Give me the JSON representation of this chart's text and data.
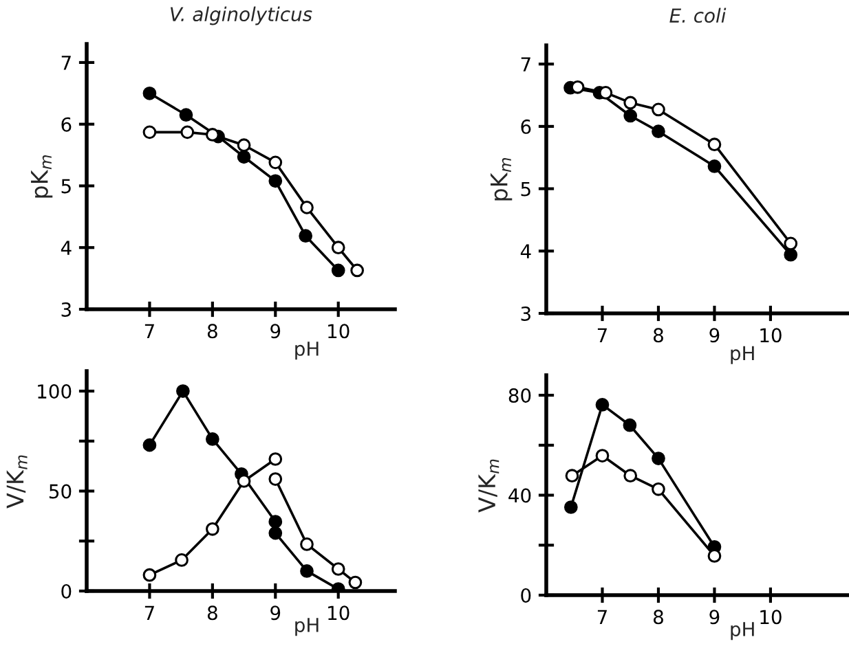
{
  "chart_data": [
    {
      "type": "line",
      "title": "V. alginolyticus",
      "xlabel": "pH",
      "ylabel": "pK$_{m}$",
      "xlim": [
        6,
        10.9
      ],
      "xticks": [
        7,
        8,
        9,
        10
      ],
      "ylim": [
        3,
        7.3
      ],
      "yticks": [
        3,
        4,
        5,
        6,
        7
      ],
      "marker": "circle",
      "grid": false,
      "series": [
        {
          "color": "#000000",
          "x": [
            7,
            7.58,
            8.09,
            8.5,
            9,
            9.48,
            10
          ],
          "values": [
            6.5,
            6.15,
            5.8,
            5.47,
            5.08,
            4.19,
            3.63
          ]
        },
        {
          "color": "#ffffff",
          "x": [
            7,
            7.6,
            8,
            8.5,
            9,
            9.5,
            10,
            10.3
          ],
          "values": [
            5.87,
            5.87,
            5.83,
            5.66,
            5.38,
            4.65,
            4.0,
            3.63
          ]
        }
      ]
    },
    {
      "type": "line",
      "title": "E. coli",
      "xlabel": "pH",
      "ylabel": "pK$_{m}$",
      "xlim": [
        6,
        11.4
      ],
      "xticks": [
        7,
        8,
        9,
        10
      ],
      "ylim": [
        3,
        7.3
      ],
      "yticks": [
        3,
        4,
        5,
        6,
        7
      ],
      "marker": "circle",
      "grid": false,
      "series": [
        {
          "color": "#000000",
          "x": [
            6.43,
            6.95,
            7.5,
            8,
            9,
            10.36
          ],
          "values": [
            6.62,
            6.54,
            6.17,
            5.92,
            5.36,
            3.94
          ]
        },
        {
          "color": "#ffffff",
          "x": [
            6.56,
            7.06,
            7.5,
            8,
            9,
            10.36
          ],
          "values": [
            6.63,
            6.54,
            6.38,
            6.27,
            5.71,
            4.12
          ]
        }
      ]
    },
    {
      "type": "line",
      "xlabel": "pH",
      "ylabel": "V/K$_{m}$",
      "xlim": [
        6,
        10.9
      ],
      "xticks": [
        7,
        8,
        9,
        10
      ],
      "ylim": [
        0,
        110
      ],
      "yticks": [
        0,
        {
          "value": 25,
          "label": null
        },
        50,
        {
          "value": 75,
          "label": null
        },
        100
      ],
      "marker": "circle",
      "grid": false,
      "series": [
        {
          "color": "#000000",
          "x": [
            7,
            7.53,
            8,
            8.46,
            9,
            9,
            9.5,
            10
          ],
          "values": [
            73,
            100,
            76,
            58.5,
            34.7,
            29,
            10,
            1
          ]
        },
        {
          "color": "#ffffff",
          "x": [
            7,
            7.51,
            8,
            8.5,
            9
          ],
          "values": [
            8,
            15.5,
            31,
            55,
            66
          ]
        },
        {
          "color": "#ffffff",
          "x": [
            9,
            9.5,
            10,
            10.27
          ],
          "values": [
            56,
            23.4,
            11,
            4.3
          ]
        }
      ]
    },
    {
      "type": "line",
      "xlabel": "pH",
      "ylabel": "V/K$_{m}$",
      "xlim": [
        6,
        11.4
      ],
      "xticks": [
        7,
        8,
        9,
        10
      ],
      "ylim": [
        0,
        88
      ],
      "yticks": [
        0,
        {
          "value": 20,
          "label": null
        },
        40,
        {
          "value": 60,
          "label": null
        },
        80
      ],
      "marker": "circle",
      "grid": false,
      "series": [
        {
          "color": "#000000",
          "x": [
            6.44,
            7,
            7.49,
            8,
            9
          ],
          "values": [
            35.2,
            76.2,
            68,
            54.7,
            19.3
          ]
        },
        {
          "color": "#ffffff",
          "x": [
            6.46,
            7,
            7.5,
            8,
            9
          ],
          "values": [
            47.8,
            55.8,
            47.8,
            42.4,
            15.7
          ]
        }
      ]
    }
  ]
}
